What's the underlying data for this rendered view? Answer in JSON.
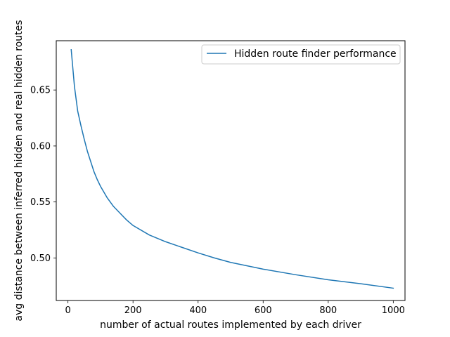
{
  "chart_data": {
    "type": "line",
    "title": "",
    "xlabel": "number of actual routes implemented by each driver",
    "ylabel": "avg distance between inferred hidden and real hidden routes",
    "xlim": [
      -36,
      1036
    ],
    "ylim": [
      0.462,
      0.694
    ],
    "xticks": [
      0,
      200,
      400,
      600,
      800,
      1000
    ],
    "xtick_labels": [
      "0",
      "200",
      "400",
      "600",
      "800",
      "1000"
    ],
    "yticks": [
      0.5,
      0.55,
      0.6,
      0.65
    ],
    "ytick_labels": [
      "0.50",
      "0.55",
      "0.60",
      "0.65"
    ],
    "grid": false,
    "legend": {
      "position": "upper-right"
    },
    "series": [
      {
        "name": "Hidden route finder performance",
        "color": "#1f77b4",
        "x": [
          10,
          20,
          30,
          40,
          50,
          60,
          70,
          80,
          90,
          100,
          120,
          140,
          160,
          180,
          200,
          250,
          300,
          350,
          400,
          450,
          500,
          600,
          700,
          800,
          900,
          1000
        ],
        "y": [
          0.686,
          0.653,
          0.631,
          0.618,
          0.606,
          0.595,
          0.586,
          0.577,
          0.57,
          0.564,
          0.554,
          0.546,
          0.54,
          0.534,
          0.529,
          0.5205,
          0.5145,
          0.5095,
          0.5045,
          0.5,
          0.496,
          0.49,
          0.485,
          0.4805,
          0.477,
          0.473
        ]
      }
    ]
  }
}
